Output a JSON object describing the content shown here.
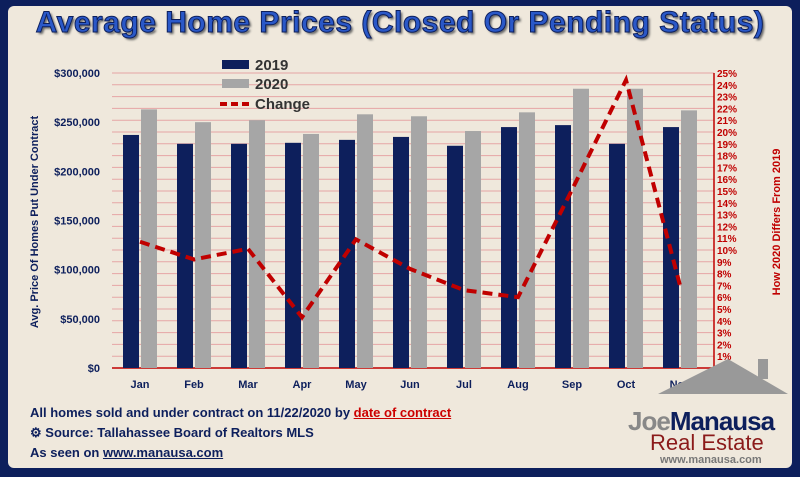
{
  "chart_data": {
    "type": "bar",
    "title": "Average Home Prices (Closed Or Pending Status)",
    "ylabel": "Avg. Price Of Homes Put Under Contract",
    "y2label": "How 2020 Differs From 2019",
    "ylim": [
      0,
      300000
    ],
    "y2lim": [
      0,
      25
    ],
    "yticks": [
      "$0",
      "$50,000",
      "$100,000",
      "$150,000",
      "$200,000",
      "$250,000",
      "$300,000"
    ],
    "categories": [
      "Jan",
      "Feb",
      "Mar",
      "Apr",
      "May",
      "Jun",
      "Jul",
      "Aug",
      "Sep",
      "Oct",
      "Nov"
    ],
    "series": [
      {
        "name": "2019",
        "type": "bar",
        "color": "#0d1f5c",
        "values": [
          237000,
          228000,
          228000,
          229000,
          232000,
          235000,
          226000,
          245000,
          247000,
          228000,
          245000
        ]
      },
      {
        "name": "2020",
        "type": "bar",
        "color": "#a6a6a6",
        "values": [
          263000,
          250000,
          252000,
          238000,
          258000,
          256000,
          241000,
          260000,
          284000,
          284000,
          262000
        ]
      },
      {
        "name": "Change",
        "type": "line",
        "axis": "right",
        "color": "#c00000",
        "values": [
          10.7,
          9.2,
          10.1,
          4.3,
          10.9,
          8.4,
          6.6,
          6.0,
          15.1,
          24.4,
          7.0
        ]
      }
    ],
    "grid": true,
    "legend": "top-left"
  },
  "footer": {
    "line1": "All homes sold and under contract on 11/22/2020 by ",
    "line1_link": "date of contract",
    "line2": "Source: Tallahassee Board of Realtors MLS",
    "line3": "As seen on ",
    "line3_link": "www.manausa.com"
  },
  "logo": {
    "joe": "Joe",
    "manausa": "Manausa",
    "real_estate": "Real Estate",
    "url": "www.manausa.com"
  }
}
